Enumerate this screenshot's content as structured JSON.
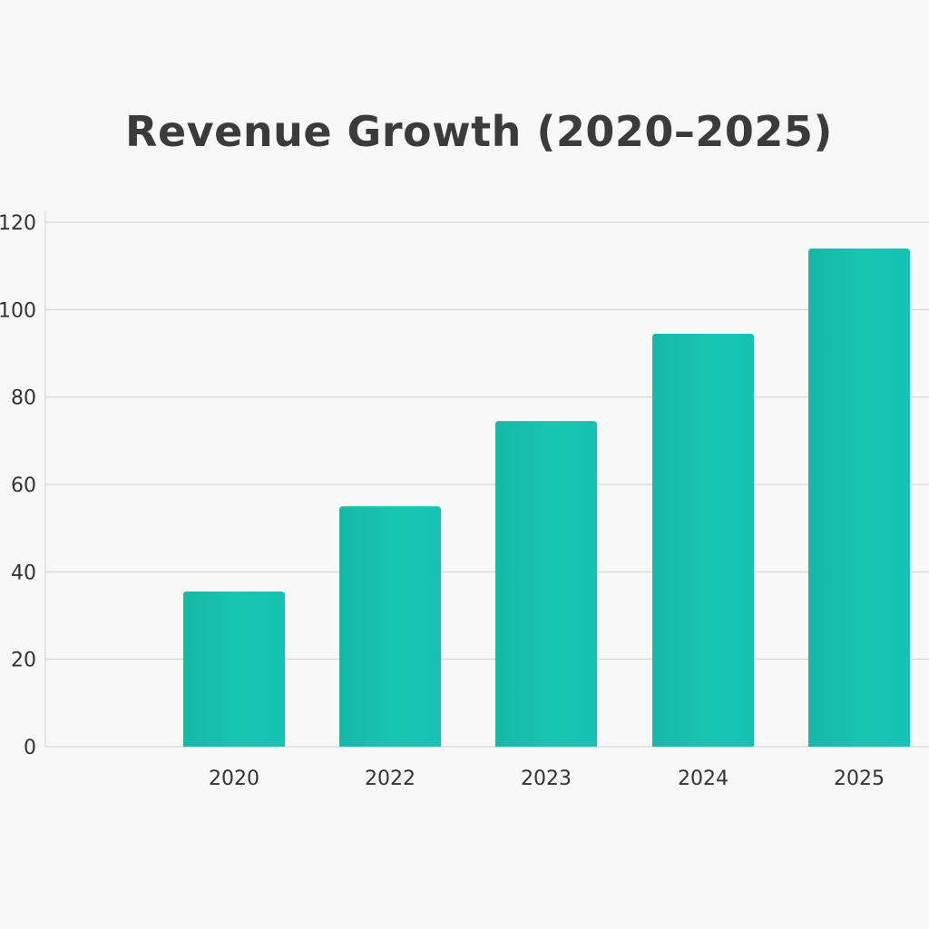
{
  "chart_data": {
    "type": "bar",
    "title": "Revenue Growth (2020–2025)",
    "xlabel": "",
    "ylabel": "",
    "categories": [
      "2020",
      "2022",
      "2023",
      "2024",
      "2025"
    ],
    "values": [
      35.5,
      55,
      74.5,
      94.5,
      114
    ],
    "ylim": [
      0,
      120
    ],
    "yticks": [
      0,
      20,
      40,
      60,
      80,
      100,
      120
    ],
    "grid": true,
    "bar_color": "#17c0b0",
    "background": "#f8f8f8"
  }
}
